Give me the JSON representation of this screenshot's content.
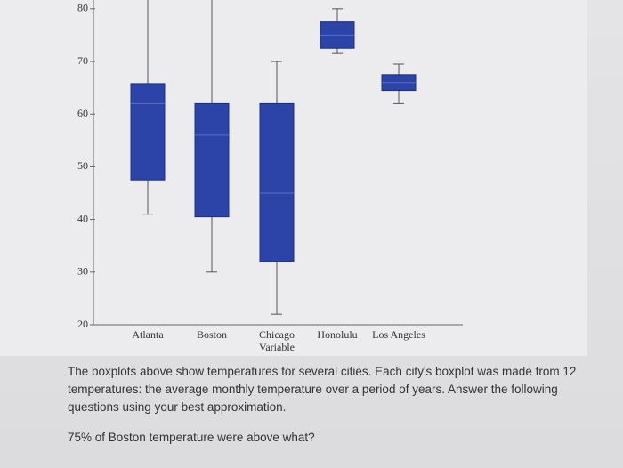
{
  "chart_data": {
    "type": "boxplot",
    "xlabel": "Variable",
    "categories": [
      "Atlanta",
      "Boston",
      "Chicago",
      "Honolulu",
      "Los Angeles"
    ],
    "min": [
      41,
      30,
      22,
      71.5,
      62
    ],
    "q1": [
      47.5,
      40.5,
      32,
      72.5,
      64.5
    ],
    "median": [
      62,
      56,
      45,
      75,
      66
    ],
    "q3": [
      65.8,
      62,
      62,
      77.5,
      67.5
    ],
    "max": [
      82,
      82,
      70,
      80,
      69.5
    ],
    "color": "#2c44a8",
    "ylim": [
      20,
      82
    ],
    "yticks": [
      20,
      30,
      40,
      50,
      60,
      70,
      80
    ]
  },
  "question": {
    "intro": "The boxplots above show temperatures for several cities. Each city's boxplot was made from 12 temperatures: the average monthly temperature over a period of years. Answer the following questions using your best approximation.",
    "prompt": "75% of Boston temperature were above what?"
  }
}
